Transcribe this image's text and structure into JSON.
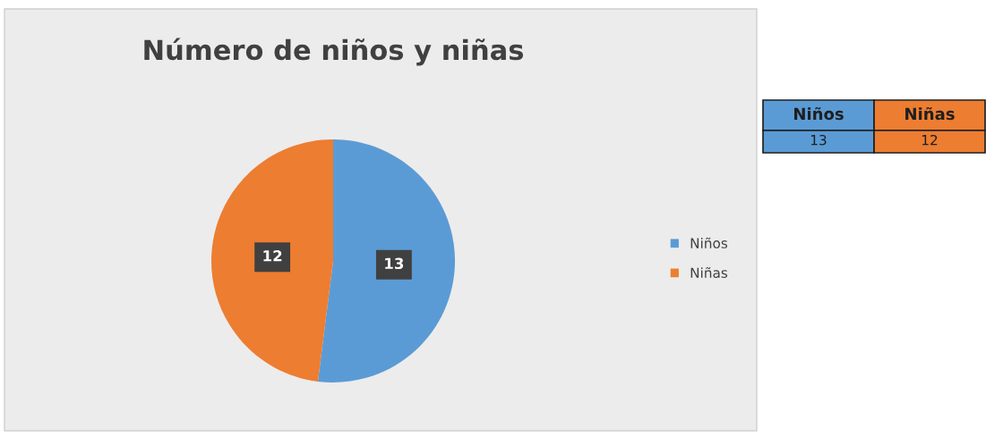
{
  "chart_data": {
    "type": "pie",
    "title": "Número de niños y niñas",
    "categories": [
      "Niños",
      "Niñas"
    ],
    "values": [
      13,
      12
    ],
    "colors": [
      "#5b9bd5",
      "#ed7d31"
    ],
    "data_labels": true,
    "annotations": [
      "13",
      "12"
    ],
    "legend": "right"
  }
}
